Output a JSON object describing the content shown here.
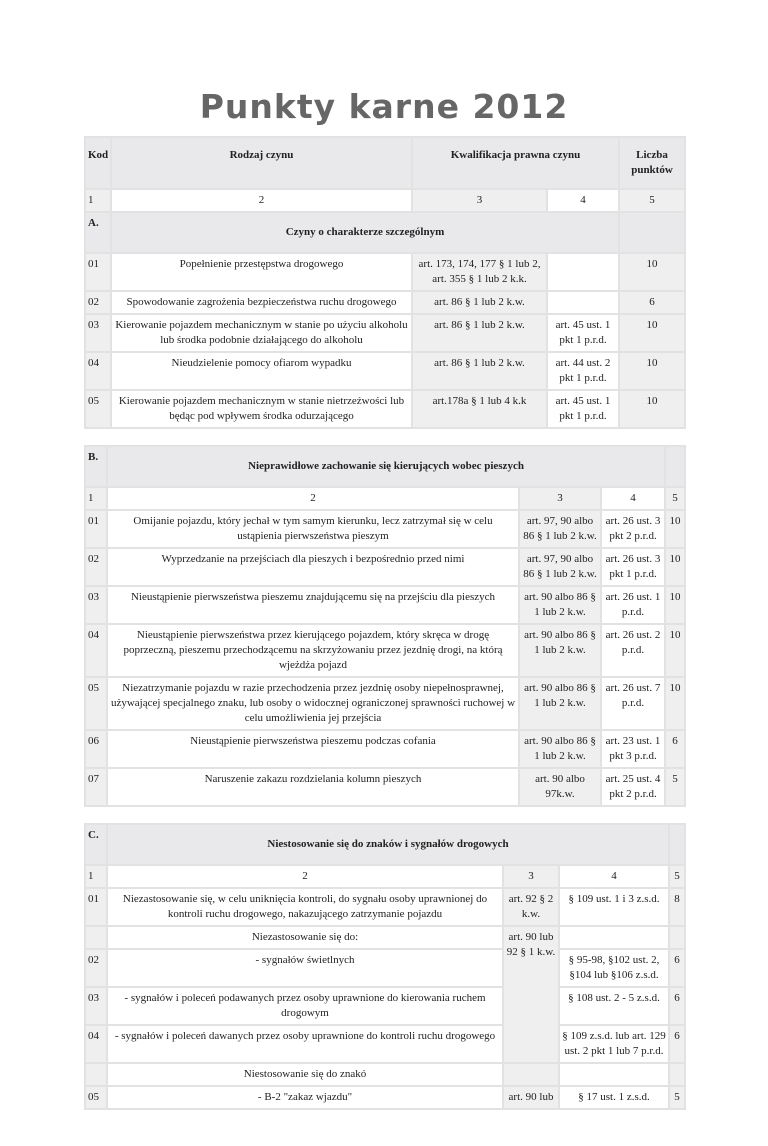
{
  "title": "Punkty karne 2012",
  "tableA": {
    "header": {
      "kod": "Kod",
      "rodzaj": "Rodzaj czynu",
      "kwalifikacja": "Kwalifikacja prawna czynu",
      "liczba": "Liczba punktów"
    },
    "numbers": [
      "1",
      "2",
      "3",
      "4",
      "5"
    ],
    "section": {
      "code": "A.",
      "title": "Czyny o charakterze szczególnym"
    },
    "rows": [
      [
        "01",
        "Popełnienie przestępstwa drogowego",
        "art. 173, 174, 177 § 1 lub 2, art. 355 § 1 lub 2 k.k.",
        "",
        "10"
      ],
      [
        "02",
        "Spowodowanie zagrożenia bezpieczeństwa ruchu drogowego",
        "art. 86 § 1 lub 2 k.w.",
        "",
        "6"
      ],
      [
        "03",
        "Kierowanie pojazdem mechanicznym w stanie po użyciu alkoholu lub środka podobnie działającego do alkoholu",
        "art. 86 § 1 lub 2 k.w.",
        "art. 45 ust. 1 pkt 1 p.r.d.",
        "10"
      ],
      [
        "04",
        "Nieudzielenie pomocy ofiarom wypadku",
        "art. 86 § 1 lub 2 k.w.",
        "art. 44 ust. 2 pkt 1 p.r.d.",
        "10"
      ],
      [
        "05",
        "Kierowanie pojazdem mechanicznym w stanie nietrzeźwości lub będąc pod wpływem środka odurzającego",
        "art.178a § 1 lub 4 k.k",
        "art. 45 ust. 1 pkt 1 p.r.d.",
        "10"
      ]
    ]
  },
  "tableB": {
    "section": {
      "code": "B.",
      "title": "Nieprawidłowe zachowanie się kierujących wobec pieszych"
    },
    "numbers": [
      "1",
      "2",
      "3",
      "4",
      "5"
    ],
    "rows": [
      [
        "01",
        "Omijanie pojazdu, który jechał w tym samym kierunku, lecz zatrzymał się w celu ustąpienia pierwszeństwa pieszym",
        "art. 97, 90 albo 86 § 1 lub 2 k.w.",
        "art. 26 ust. 3 pkt 2 p.r.d.",
        "10"
      ],
      [
        "02",
        "Wyprzedzanie na przejściach dla pieszych i bezpośrednio przed nimi",
        "art. 97, 90 albo 86 § 1 lub 2 k.w.",
        "art. 26 ust. 3 pkt 1 p.r.d.",
        "10"
      ],
      [
        "03",
        "Nieustąpienie pierwszeństwa pieszemu znajdującemu się na przejściu dla pieszych",
        "art. 90 albo 86 § 1 lub 2 k.w.",
        "art. 26 ust. 1 p.r.d.",
        "10"
      ],
      [
        "04",
        "Nieustąpienie pierwszeństwa przez kierującego pojazdem, który skręca w drogę poprzeczną, pieszemu przechodzącemu na skrzyżowaniu przez jezdnię drogi, na którą wjeżdża pojazd",
        "art. 90 albo 86 § 1 lub 2 k.w.",
        "art. 26 ust. 2 p.r.d.",
        "10"
      ],
      [
        "05",
        "Niezatrzymanie pojazdu w razie przechodzenia przez jezdnię osoby niepełnosprawnej, używającej specjalnego znaku, lub osoby o widocznej ograniczonej sprawności ruchowej w celu umożliwienia jej przejścia",
        "art. 90 albo 86 § 1 lub 2 k.w.",
        "art. 26 ust. 7 p.r.d.",
        "10"
      ],
      [
        "06",
        "Nieustąpienie pierwszeństwa pieszemu podczas cofania",
        "art. 90 albo 86 § 1 lub 2 k.w.",
        "art. 23 ust. 1 pkt 3 p.r.d.",
        "6"
      ],
      [
        "07",
        "Naruszenie zakazu rozdzielania kolumn pieszych",
        "art. 90 albo 97k.w.",
        "art. 25 ust. 4 pkt 2 p.r.d.",
        "5"
      ]
    ]
  },
  "tableC": {
    "section": {
      "code": "C.",
      "title": "Niestosowanie się do znaków i sygnałów drogowych"
    },
    "numbers": [
      "1",
      "2",
      "3",
      "4",
      "5"
    ],
    "rows": [
      [
        "01",
        "Niezastosowanie się, w celu uniknięcia kontroli, do sygnału osoby uprawnionej do kontroli ruchu drogowego, nakazującego zatrzymanie pojazdu",
        "art. 92 § 2 k.w.",
        "§ 109 ust. 1 i 3 z.s.d.",
        "8"
      ],
      [
        "",
        "Niezastosowanie się do:",
        "art. 90 lub 92 § 1 k.w.",
        "",
        ""
      ],
      [
        "02",
        "- sygnałów świetlnych",
        null,
        "§ 95-98, §102 ust. 2, §104 lub §106 z.s.d.",
        "6"
      ],
      [
        "03",
        "- sygnałów i poleceń podawanych przez osoby uprawnione do kierowania ruchem drogowym",
        null,
        "§ 108 ust. 2 - 5 z.s.d.",
        "6"
      ],
      [
        "04",
        "- sygnałów i poleceń dawanych przez osoby uprawnione do kontroli ruchu drogowego",
        null,
        "§ 109 z.s.d. lub art. 129 ust. 2 pkt 1 lub 7 p.r.d.",
        "6"
      ],
      [
        "",
        "Niestosowanie się do znakó",
        "",
        "",
        ""
      ],
      [
        "05",
        "- B-2 \"zakaz wjazdu\"",
        "art. 90 lub",
        "§ 17 ust. 1 z.s.d.",
        "5"
      ]
    ]
  }
}
